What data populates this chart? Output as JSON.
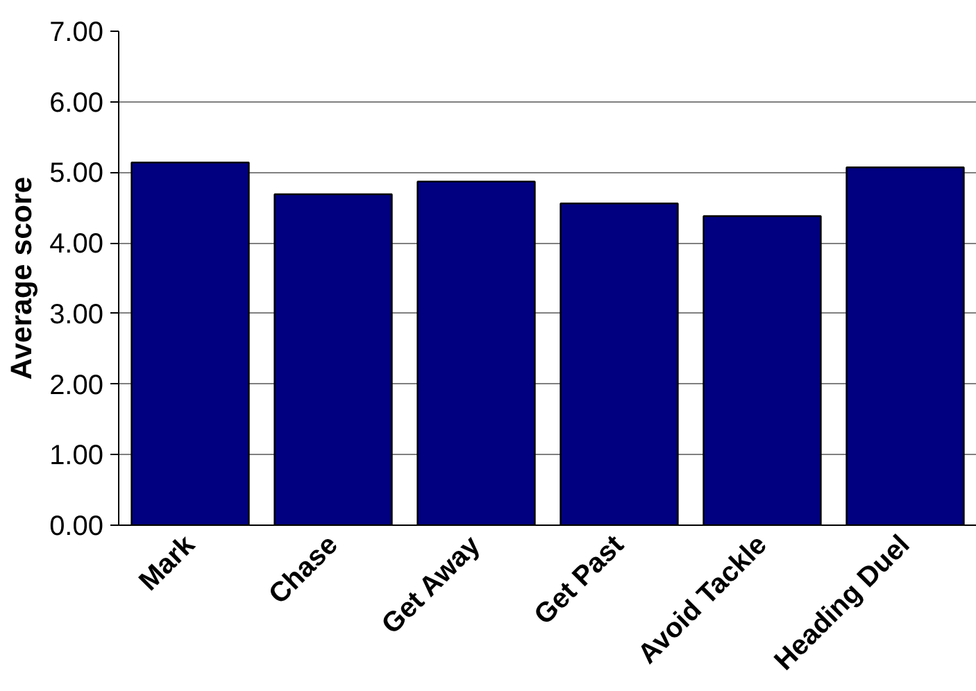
{
  "chart_data": {
    "type": "bar",
    "ylabel": "Average score",
    "categories": [
      "Mark",
      "Chase",
      "Get Away",
      "Get Past",
      "Avoid Tackle",
      "Heading Duel"
    ],
    "values": [
      5.14,
      4.69,
      4.87,
      4.56,
      4.38,
      5.07
    ],
    "color": "#000080",
    "ylim": [
      0,
      7
    ],
    "yticks": [
      {
        "value": 0,
        "label": "0.00"
      },
      {
        "value": 1,
        "label": "1.00"
      },
      {
        "value": 2,
        "label": "2.00"
      },
      {
        "value": 3,
        "label": "3.00"
      },
      {
        "value": 4,
        "label": "4.00"
      },
      {
        "value": 5,
        "label": "5.00"
      },
      {
        "value": 6,
        "label": "6.00"
      },
      {
        "value": 7,
        "label": "7.00"
      }
    ],
    "grid": "y"
  }
}
